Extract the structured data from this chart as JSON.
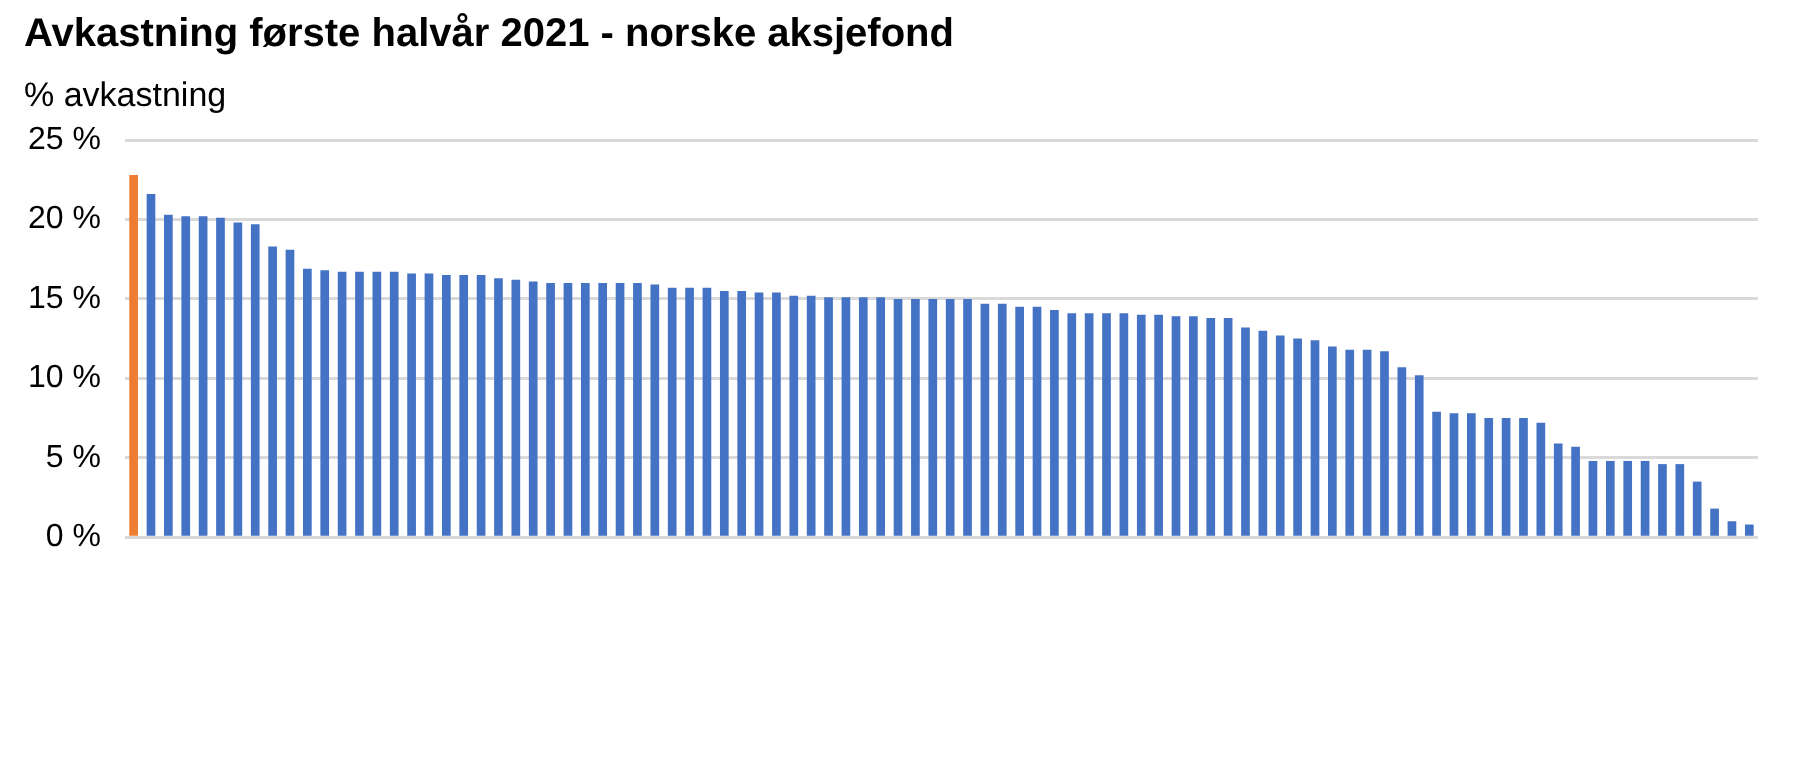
{
  "chart_data": {
    "type": "bar",
    "title": "Avkastning første halvår 2021 - norske aksjefond",
    "ylabel": "% avkastning",
    "categories": [
      null,
      null,
      null,
      null,
      null,
      null,
      null,
      null,
      null,
      null,
      null,
      null,
      null,
      null,
      null,
      null,
      null,
      null,
      null,
      null,
      null,
      null,
      null,
      null,
      null,
      null,
      null,
      null,
      null,
      null,
      null,
      null,
      null,
      null,
      null,
      null,
      null,
      null,
      null,
      null,
      null,
      null,
      null,
      null,
      null,
      null,
      null,
      null,
      null,
      null,
      null,
      null,
      null,
      null,
      null,
      null,
      null,
      null,
      null,
      null,
      null,
      null,
      null,
      null,
      null,
      null,
      null,
      null,
      null,
      null,
      null,
      null,
      null,
      null,
      null,
      null,
      null,
      null,
      null,
      null,
      null,
      null,
      null,
      null,
      null,
      null,
      null,
      null,
      null,
      null,
      null,
      null,
      null,
      null
    ],
    "values": [
      22.8,
      21.6,
      20.3,
      20.2,
      20.2,
      20.1,
      19.8,
      19.7,
      18.3,
      18.1,
      16.9,
      16.8,
      16.7,
      16.7,
      16.7,
      16.7,
      16.6,
      16.6,
      16.5,
      16.5,
      16.5,
      16.3,
      16.2,
      16.1,
      16.0,
      16.0,
      16.0,
      16.0,
      16.0,
      16.0,
      15.9,
      15.7,
      15.7,
      15.7,
      15.5,
      15.5,
      15.4,
      15.4,
      15.2,
      15.2,
      15.1,
      15.1,
      15.1,
      15.1,
      15.0,
      15.0,
      15.0,
      15.0,
      15.0,
      14.7,
      14.7,
      14.5,
      14.5,
      14.3,
      14.1,
      14.1,
      14.1,
      14.1,
      14.0,
      14.0,
      13.9,
      13.9,
      13.8,
      13.8,
      13.2,
      13.0,
      12.7,
      12.5,
      12.4,
      12.0,
      11.8,
      11.8,
      11.7,
      10.7,
      10.2,
      7.9,
      7.8,
      7.8,
      7.5,
      7.5,
      7.5,
      7.2,
      5.9,
      5.7,
      4.8,
      4.8,
      4.8,
      4.8,
      4.6,
      4.6,
      3.5,
      1.8,
      1.0,
      0.8
    ],
    "colors": [
      "#ed7d31",
      "#4472c4",
      "#4472c4",
      "#4472c4",
      "#4472c4",
      "#4472c4",
      "#4472c4",
      "#4472c4",
      "#4472c4",
      "#4472c4",
      "#4472c4",
      "#4472c4",
      "#4472c4",
      "#4472c4",
      "#4472c4",
      "#4472c4",
      "#4472c4",
      "#4472c4",
      "#4472c4",
      "#4472c4",
      "#4472c4",
      "#4472c4",
      "#4472c4",
      "#4472c4",
      "#4472c4",
      "#4472c4",
      "#4472c4",
      "#4472c4",
      "#4472c4",
      "#4472c4",
      "#4472c4",
      "#4472c4",
      "#4472c4",
      "#4472c4",
      "#4472c4",
      "#4472c4",
      "#4472c4",
      "#4472c4",
      "#4472c4",
      "#4472c4",
      "#4472c4",
      "#4472c4",
      "#4472c4",
      "#4472c4",
      "#4472c4",
      "#4472c4",
      "#4472c4",
      "#4472c4",
      "#4472c4",
      "#4472c4",
      "#4472c4",
      "#4472c4",
      "#4472c4",
      "#4472c4",
      "#4472c4",
      "#4472c4",
      "#4472c4",
      "#4472c4",
      "#4472c4",
      "#4472c4",
      "#4472c4",
      "#4472c4",
      "#4472c4",
      "#4472c4",
      "#4472c4",
      "#4472c4",
      "#4472c4",
      "#4472c4",
      "#4472c4",
      "#4472c4",
      "#4472c4",
      "#4472c4",
      "#4472c4",
      "#4472c4",
      "#4472c4",
      "#4472c4",
      "#4472c4",
      "#4472c4",
      "#4472c4",
      "#4472c4",
      "#4472c4",
      "#4472c4",
      "#4472c4",
      "#4472c4",
      "#4472c4",
      "#4472c4",
      "#4472c4",
      "#4472c4",
      "#4472c4",
      "#4472c4",
      "#4472c4",
      "#4472c4",
      "#4472c4",
      "#4472c4"
    ],
    "ylim": [
      0,
      25
    ],
    "yticks": [
      {
        "value": 0,
        "label": "0 %"
      },
      {
        "value": 5,
        "label": "5 %"
      },
      {
        "value": 10,
        "label": "10 %"
      },
      {
        "value": 15,
        "label": "15 %"
      },
      {
        "value": 20,
        "label": "20 %"
      },
      {
        "value": 25,
        "label": "25 %"
      }
    ],
    "grid": "y",
    "legend": false
  }
}
